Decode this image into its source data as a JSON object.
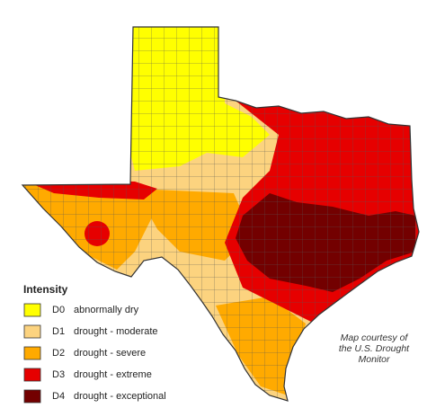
{
  "legend": {
    "title": "Intensity",
    "items": [
      {
        "code": "D0",
        "label": "abnormally dry",
        "color": "#ffff00"
      },
      {
        "code": "D1",
        "label": "drought - moderate",
        "color": "#fcd37f"
      },
      {
        "code": "D2",
        "label": "drought - severe",
        "color": "#ffaa00"
      },
      {
        "code": "D3",
        "label": "drought - extreme",
        "color": "#e60000"
      },
      {
        "code": "D4",
        "label": "drought - exceptional",
        "color": "#730000"
      }
    ]
  },
  "credit": {
    "lines": [
      "Map courtesy of",
      "the U.S. Drought",
      "Monitor"
    ]
  }
}
